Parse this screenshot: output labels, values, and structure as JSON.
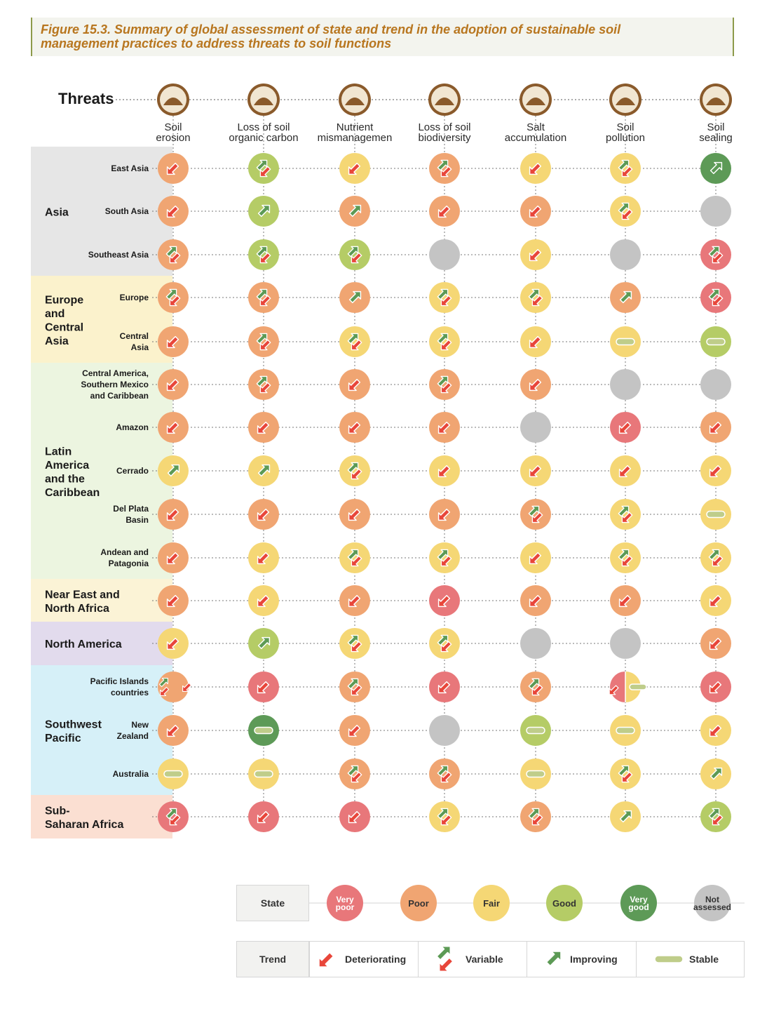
{
  "caption": {
    "line1": "Figure 15.3. Summary of global assessment of state and trend in the adoption of sustainable soil",
    "line2": "management practices to address threats to soil functions"
  },
  "colors": {
    "very_poor": "#e8777a",
    "poor": "#f0a572",
    "fair": "#f5d775",
    "good": "#b5cc66",
    "very_good": "#5d9a57",
    "not_assessed": "#c4c4c4",
    "deteriorating": "#e8463a",
    "improving": "#5c9a55",
    "stable": "#bfcd8a",
    "threat_icon": "#8a5a2b"
  },
  "chart_data": {
    "type": "table",
    "row_header": "Threats",
    "threats": [
      {
        "id": "soil-erosion",
        "label": [
          "Soil",
          "erosion"
        ],
        "icon": "soil-erosion-icon"
      },
      {
        "id": "loss-soc",
        "label": [
          "Loss of soil",
          "organic carbon"
        ],
        "icon": "organic-carbon-icon"
      },
      {
        "id": "nutrient",
        "label": [
          "Nutrient",
          "mismanagemen"
        ],
        "icon": "nutrient-icon"
      },
      {
        "id": "biodiversity",
        "label": [
          "Loss of soil",
          "biodiversity"
        ],
        "icon": "biodiversity-icon"
      },
      {
        "id": "salt",
        "label": [
          "Salt",
          "accumulation"
        ],
        "icon": "salt-icon"
      },
      {
        "id": "pollution",
        "label": [
          "Soil",
          "pollution"
        ],
        "icon": "pollution-icon"
      },
      {
        "id": "sealing",
        "label": [
          "Soil",
          "sealing"
        ],
        "icon": "sealing-icon"
      }
    ],
    "regions": [
      {
        "label": [
          "Asia"
        ],
        "bg": "#e6e6e6",
        "rows": 3
      },
      {
        "label": [
          "Europe",
          "and",
          "Central",
          "Asia"
        ],
        "bg": "#fbf2cc",
        "rows": 2
      },
      {
        "label": [
          "Latin",
          "America",
          "and the",
          "Caribbean"
        ],
        "bg": "#ecf5e0",
        "rows": 5
      },
      {
        "label": [
          "Near East and",
          "North Africa"
        ],
        "bg": "#fbf3d6",
        "rows": 1
      },
      {
        "label": [
          "North America"
        ],
        "bg": "#e2dbed",
        "rows": 1
      },
      {
        "label": [
          "Southwest",
          "Pacific"
        ],
        "bg": "#d6f0f8",
        "rows": 3
      },
      {
        "label": [
          "Sub-",
          "Saharan Africa"
        ],
        "bg": "#fbdfd2",
        "rows": 1
      }
    ],
    "rows": [
      {
        "label": [
          "East Asia"
        ],
        "cells": [
          [
            "poor",
            "det"
          ],
          [
            "good",
            "var"
          ],
          [
            "fair",
            "det"
          ],
          [
            "poor",
            "var"
          ],
          [
            "fair",
            "det"
          ],
          [
            "fair",
            "var"
          ],
          [
            "very_good",
            "imp"
          ]
        ]
      },
      {
        "label": [
          "South Asia"
        ],
        "cells": [
          [
            "poor",
            "det"
          ],
          [
            "good",
            "imp"
          ],
          [
            "poor",
            "imp"
          ],
          [
            "poor",
            "det"
          ],
          [
            "poor",
            "det"
          ],
          [
            "fair",
            "var"
          ],
          [
            "not_assessed",
            ""
          ]
        ]
      },
      {
        "label": [
          "Southeast Asia"
        ],
        "cells": [
          [
            "poor",
            "var"
          ],
          [
            "good",
            "var"
          ],
          [
            "good",
            "var"
          ],
          [
            "not_assessed",
            ""
          ],
          [
            "fair",
            "det"
          ],
          [
            "not_assessed",
            ""
          ],
          [
            "very_poor",
            "var"
          ]
        ]
      },
      {
        "label": [
          "Europe"
        ],
        "cells": [
          [
            "poor",
            "var"
          ],
          [
            "poor",
            "var"
          ],
          [
            "poor",
            "imp"
          ],
          [
            "fair",
            "var"
          ],
          [
            "fair",
            "var"
          ],
          [
            "poor",
            "imp"
          ],
          [
            "very_poor",
            "var"
          ]
        ]
      },
      {
        "label": [
          "Central",
          "Asia"
        ],
        "cells": [
          [
            "poor",
            "det"
          ],
          [
            "poor",
            "var"
          ],
          [
            "fair",
            "var"
          ],
          [
            "fair",
            "var"
          ],
          [
            "fair",
            "det"
          ],
          [
            "fair",
            "sta"
          ],
          [
            "good",
            "sta"
          ]
        ]
      },
      {
        "label": [
          "Central America,",
          "Southern Mexico",
          "and Caribbean"
        ],
        "cells": [
          [
            "poor",
            "det"
          ],
          [
            "poor",
            "var"
          ],
          [
            "poor",
            "det"
          ],
          [
            "poor",
            "var"
          ],
          [
            "poor",
            "det"
          ],
          [
            "not_assessed",
            ""
          ],
          [
            "not_assessed",
            ""
          ]
        ]
      },
      {
        "label": [
          "Amazon"
        ],
        "cells": [
          [
            "poor",
            "det"
          ],
          [
            "poor",
            "det"
          ],
          [
            "poor",
            "det"
          ],
          [
            "poor",
            "det"
          ],
          [
            "not_assessed",
            ""
          ],
          [
            "very_poor",
            "det"
          ],
          [
            "poor",
            "det"
          ]
        ]
      },
      {
        "label": [
          "Cerrado"
        ],
        "cells": [
          [
            "fair",
            "imp"
          ],
          [
            "fair",
            "imp"
          ],
          [
            "fair",
            "var"
          ],
          [
            "fair",
            "det"
          ],
          [
            "fair",
            "det"
          ],
          [
            "fair",
            "det"
          ],
          [
            "fair",
            "det"
          ]
        ]
      },
      {
        "label": [
          "Del Plata",
          "Basin"
        ],
        "cells": [
          [
            "poor",
            "det"
          ],
          [
            "poor",
            "det"
          ],
          [
            "poor",
            "det"
          ],
          [
            "poor",
            "det"
          ],
          [
            "poor",
            "var"
          ],
          [
            "fair",
            "var"
          ],
          [
            "fair",
            "sta"
          ]
        ]
      },
      {
        "label": [
          "Andean and",
          "Patagonia"
        ],
        "cells": [
          [
            "poor",
            "det"
          ],
          [
            "fair",
            "det"
          ],
          [
            "fair",
            "var"
          ],
          [
            "fair",
            "var"
          ],
          [
            "fair",
            "det"
          ],
          [
            "fair",
            "var"
          ],
          [
            "fair",
            "var"
          ]
        ]
      },
      {
        "label": [],
        "cells": [
          [
            "poor",
            "det"
          ],
          [
            "fair",
            "det"
          ],
          [
            "poor",
            "det"
          ],
          [
            "very_poor",
            "det"
          ],
          [
            "poor",
            "det"
          ],
          [
            "poor",
            "det"
          ],
          [
            "fair",
            "det"
          ]
        ]
      },
      {
        "label": [],
        "cells": [
          [
            "fair",
            "det"
          ],
          [
            "good",
            "imp"
          ],
          [
            "fair",
            "var"
          ],
          [
            "fair",
            "var"
          ],
          [
            "not_assessed",
            ""
          ],
          [
            "not_assessed",
            ""
          ],
          [
            "poor",
            "det"
          ]
        ]
      },
      {
        "label": [
          "Pacific Islands",
          "countries"
        ],
        "cells": [
          [
            "poor",
            "var_det"
          ],
          [
            "very_poor",
            "det"
          ],
          [
            "poor",
            "var"
          ],
          [
            "very_poor",
            "det"
          ],
          [
            "poor",
            "var"
          ],
          [
            "split",
            ""
          ],
          [
            "very_poor",
            "det"
          ]
        ]
      },
      {
        "label": [
          "New",
          "Zealand"
        ],
        "cells": [
          [
            "poor",
            "det"
          ],
          [
            "very_good",
            "sta"
          ],
          [
            "poor",
            "det"
          ],
          [
            "not_assessed",
            ""
          ],
          [
            "good",
            "sta"
          ],
          [
            "fair",
            "sta"
          ],
          [
            "fair",
            "det"
          ]
        ]
      },
      {
        "label": [
          "Australia"
        ],
        "cells": [
          [
            "fair",
            "sta"
          ],
          [
            "fair",
            "sta"
          ],
          [
            "poor",
            "var"
          ],
          [
            "poor",
            "var"
          ],
          [
            "fair",
            "sta"
          ],
          [
            "fair",
            "var"
          ],
          [
            "fair",
            "imp"
          ]
        ]
      },
      {
        "label": [],
        "cells": [
          [
            "very_poor",
            "var"
          ],
          [
            "very_poor",
            "det"
          ],
          [
            "very_poor",
            "det"
          ],
          [
            "fair",
            "var"
          ],
          [
            "poor",
            "var"
          ],
          [
            "fair",
            "imp"
          ],
          [
            "good",
            "var"
          ]
        ]
      }
    ],
    "legend": {
      "state_title": "State",
      "states": [
        {
          "key": "very_poor",
          "label": [
            "Very",
            "poor"
          ]
        },
        {
          "key": "poor",
          "label": [
            "Poor"
          ]
        },
        {
          "key": "fair",
          "label": [
            "Fair"
          ]
        },
        {
          "key": "good",
          "label": [
            "Good"
          ]
        },
        {
          "key": "very_good",
          "label": [
            "Very",
            "good"
          ]
        },
        {
          "key": "not_assessed",
          "label": [
            "Not",
            "assessed"
          ]
        }
      ],
      "trend_title": "Trend",
      "trends": [
        {
          "key": "det",
          "label": "Deteriorating"
        },
        {
          "key": "var",
          "label": "Variable"
        },
        {
          "key": "imp",
          "label": "Improving"
        },
        {
          "key": "sta",
          "label": "Stable"
        }
      ]
    }
  }
}
